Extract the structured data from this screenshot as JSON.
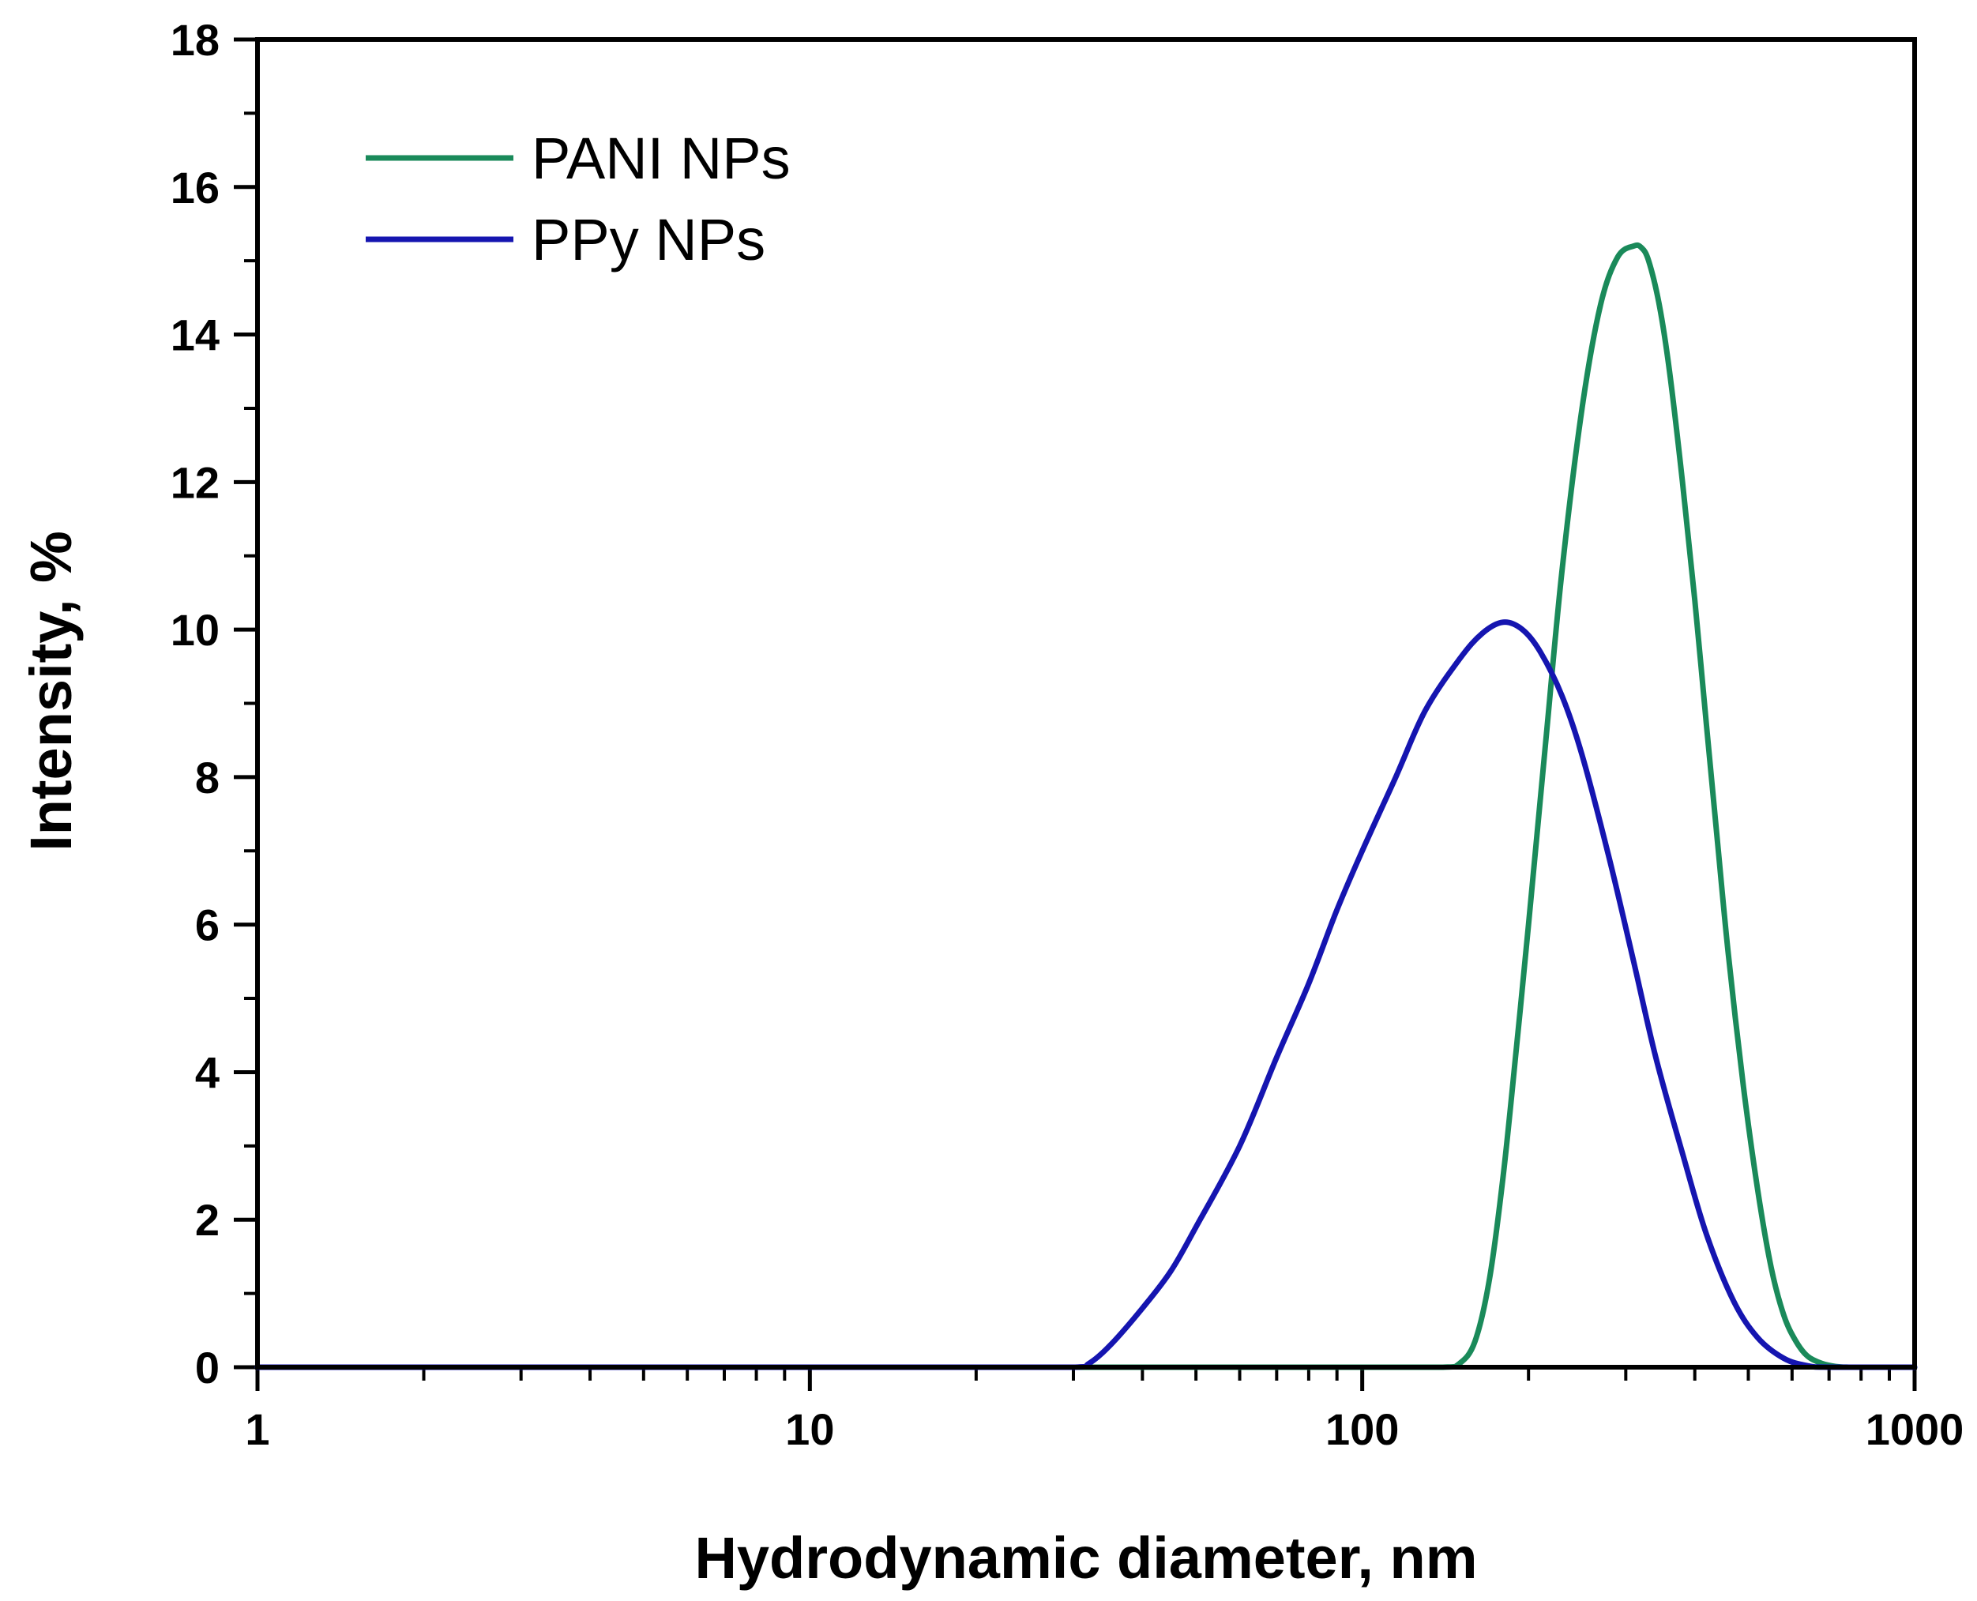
{
  "chart_data": {
    "type": "line",
    "title": "",
    "xlabel": "Hydrodynamic diameter, nm",
    "ylabel": "Intensity, %",
    "xscale": "log",
    "xlim": [
      1,
      1000
    ],
    "ylim": [
      0,
      18
    ],
    "x_ticks": [
      {
        "value": 1,
        "label": "1"
      },
      {
        "value": 10,
        "label": "10"
      },
      {
        "value": 100,
        "label": "100"
      },
      {
        "value": 1000,
        "label": "1000"
      }
    ],
    "y_ticks": [
      {
        "value": 0,
        "label": "0"
      },
      {
        "value": 2,
        "label": "2"
      },
      {
        "value": 4,
        "label": "4"
      },
      {
        "value": 6,
        "label": "6"
      },
      {
        "value": 8,
        "label": "8"
      },
      {
        "value": 10,
        "label": "10"
      },
      {
        "value": 12,
        "label": "12"
      },
      {
        "value": 14,
        "label": "14"
      },
      {
        "value": 16,
        "label": "16"
      },
      {
        "value": 18,
        "label": "18"
      }
    ],
    "legend_position": "top-left",
    "series": [
      {
        "name": "PANI NPs",
        "color": "#1a8a5a",
        "x": [
          1,
          20,
          100,
          140,
          150,
          160,
          170,
          180,
          190,
          200,
          215,
          230,
          250,
          270,
          290,
          310,
          320,
          330,
          345,
          360,
          380,
          400,
          420,
          440,
          460,
          490,
          520,
          550,
          580,
          610,
          640,
          680,
          720,
          760,
          800,
          1000
        ],
        "y": [
          0,
          0,
          0,
          0,
          0.05,
          0.35,
          1.2,
          2.6,
          4.3,
          6.0,
          8.5,
          10.8,
          13.0,
          14.4,
          15.05,
          15.2,
          15.18,
          15.0,
          14.4,
          13.5,
          12.0,
          10.4,
          8.7,
          7.1,
          5.6,
          3.8,
          2.4,
          1.35,
          0.7,
          0.35,
          0.15,
          0.05,
          0.01,
          0,
          0,
          0
        ]
      },
      {
        "name": "PPy NPs",
        "color": "#1515b0",
        "x": [
          1,
          20,
          30,
          32,
          35,
          40,
          45,
          50,
          60,
          70,
          80,
          90,
          100,
          115,
          130,
          150,
          165,
          180,
          195,
          210,
          230,
          250,
          280,
          310,
          340,
          380,
          420,
          470,
          520,
          580,
          640,
          700,
          1000
        ],
        "y": [
          0,
          0,
          0,
          0.05,
          0.3,
          0.8,
          1.3,
          1.9,
          3.0,
          4.2,
          5.2,
          6.2,
          7.0,
          8.0,
          8.9,
          9.6,
          9.95,
          10.1,
          10.0,
          9.7,
          9.1,
          8.3,
          6.9,
          5.5,
          4.2,
          2.9,
          1.8,
          0.9,
          0.4,
          0.12,
          0.02,
          0,
          0
        ]
      }
    ]
  }
}
